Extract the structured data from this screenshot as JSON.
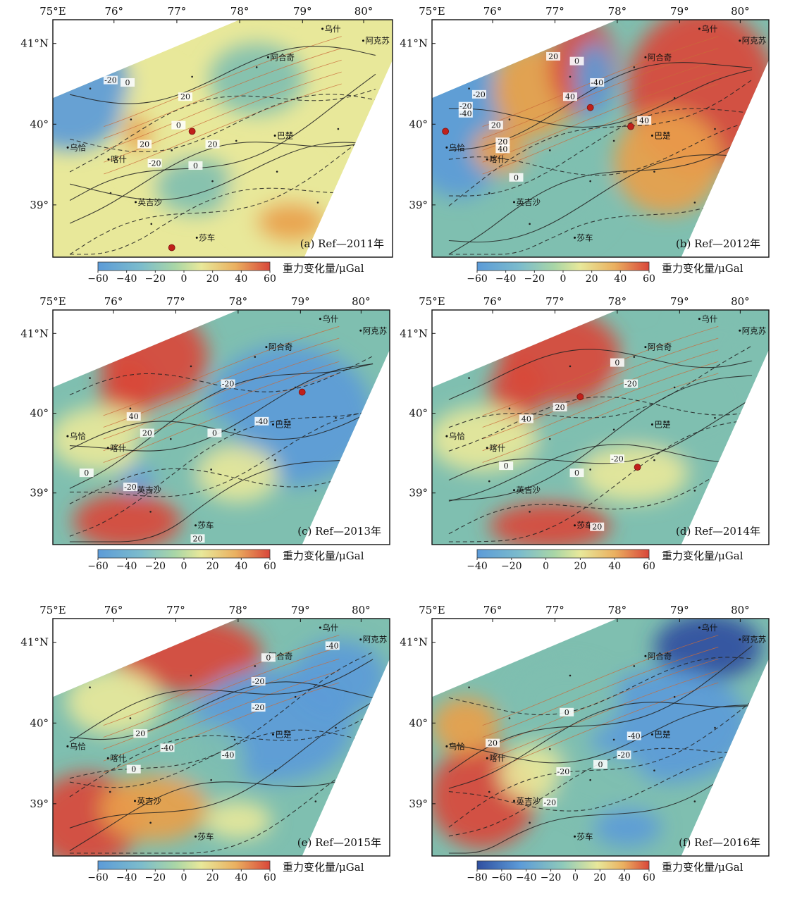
{
  "shared": {
    "lon_labels": [
      "75°E",
      "76°",
      "77°",
      "78°",
      "79°",
      "80°"
    ],
    "lat_labels": [
      "41°N",
      "40°",
      "39°"
    ],
    "places": [
      "乌什",
      "阿克苏",
      "阿合奇",
      "乌恰",
      "喀什",
      "巴楚",
      "英吉沙",
      "莎车"
    ],
    "colorbar_label": "重力变化量/μGal",
    "colors": {
      "low_dark": "#2f4fa0",
      "low": "#5c9bd8",
      "mid_low": "#7fbfb0",
      "mid": "#e8e89a",
      "high": "#e9a04a",
      "peak": "#d9473a",
      "station_red": "#c0201a",
      "fault": "#c96a3a",
      "contour": "#222222"
    }
  },
  "panels": [
    {
      "title": "(a) Ref—2011年",
      "colorbar_ticks": [
        "−60",
        "−40",
        "−20",
        "0",
        "20",
        "40",
        "60"
      ],
      "contour_labels": [
        "-20",
        "0",
        "20",
        "0",
        "20",
        "-20",
        "0",
        "20"
      ],
      "markers": 2
    },
    {
      "title": "(b) Ref—2012年",
      "colorbar_ticks": [
        "−60",
        "−40",
        "−20",
        "0",
        "20",
        "40",
        "60"
      ],
      "contour_labels": [
        "-20",
        "-40",
        "20",
        "0",
        "-40",
        "40",
        "20",
        "40",
        "-20",
        "20",
        "40",
        "0"
      ],
      "markers": 3
    },
    {
      "title": "(c) Ref—2013年",
      "colorbar_ticks": [
        "−60",
        "−40",
        "−20",
        "0",
        "20",
        "40",
        "60"
      ],
      "contour_labels": [
        "40",
        "20",
        "-20",
        "-40",
        "0",
        "0",
        "-20",
        "20"
      ],
      "markers": 1
    },
    {
      "title": "(d) Ref—2014年",
      "colorbar_ticks": [
        "−40",
        "−20",
        "0",
        "20",
        "40",
        "60"
      ],
      "contour_labels": [
        "40",
        "20",
        "0",
        "-20",
        "0",
        "-20",
        "0",
        "20"
      ],
      "markers": 2
    },
    {
      "title": "(e) Ref—2015年",
      "colorbar_ticks": [
        "−60",
        "−40",
        "−20",
        "0",
        "20",
        "40",
        "60"
      ],
      "contour_labels": [
        "0",
        "-20",
        "-40",
        "20",
        "-40",
        "-20",
        "-40",
        "0"
      ],
      "markers": 0
    },
    {
      "title": "(f) Ref—2016年",
      "colorbar_ticks": [
        "−80",
        "−60",
        "−40",
        "−20",
        "0",
        "20",
        "40",
        "60"
      ],
      "contour_labels": [
        "0",
        "-40",
        "-20",
        "-20",
        "0",
        "-20",
        "20"
      ],
      "markers": 0
    }
  ]
}
